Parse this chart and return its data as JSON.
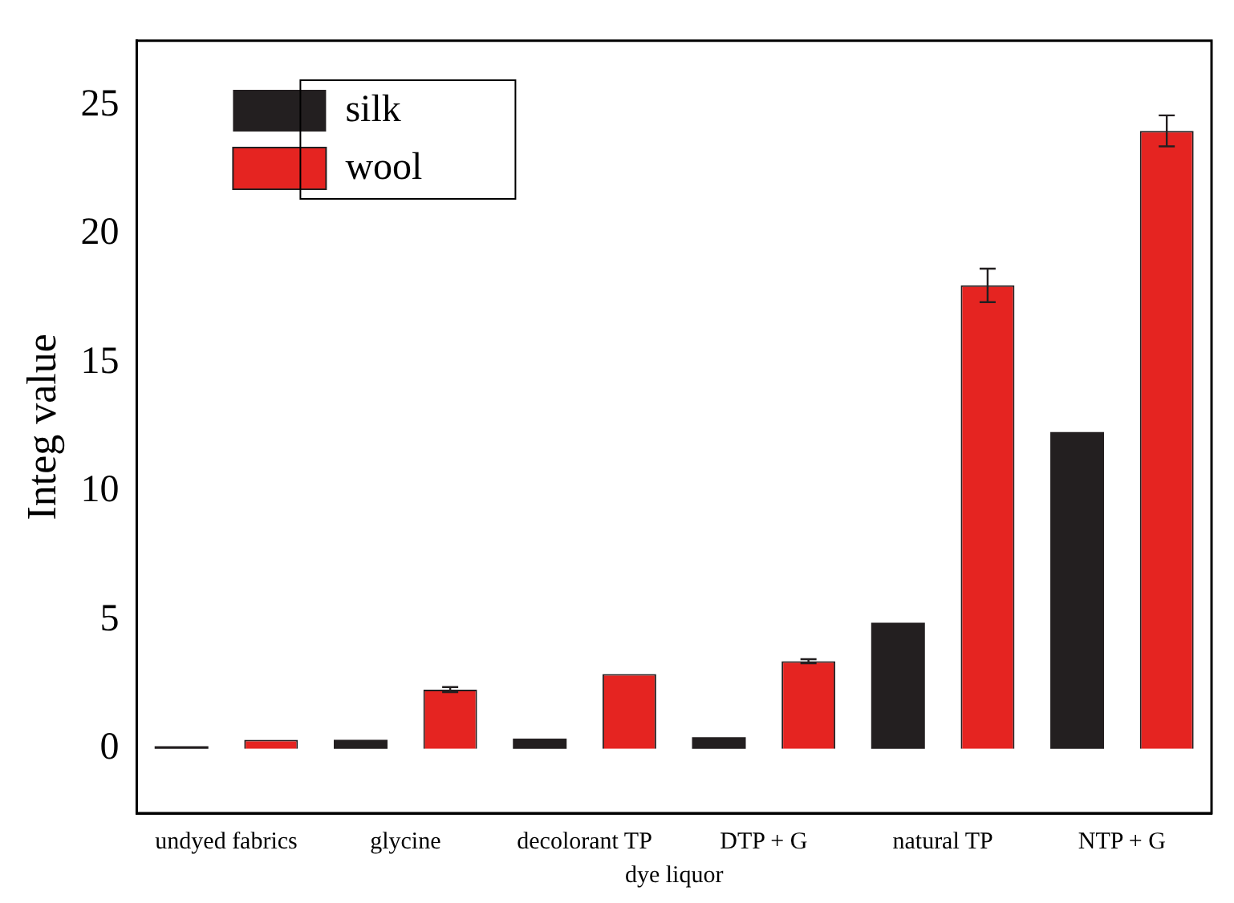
{
  "chart_data": {
    "type": "bar",
    "xlabel": "dye liquor",
    "ylabel": "Integ value",
    "categories": [
      "undyed fabrics",
      "glycine",
      "decolorant TP",
      "DTP + G",
      "natural TP",
      "NTP + G"
    ],
    "series": [
      {
        "name": "silk",
        "color": "#231f20",
        "values": [
          0.1,
          0.35,
          0.4,
          0.45,
          4.9,
          12.3
        ]
      },
      {
        "name": "wool",
        "color": "#e52421",
        "values": [
          0.35,
          2.3,
          2.9,
          3.4,
          18.0,
          24.0
        ],
        "errors": [
          null,
          0.1,
          null,
          0.08,
          0.65,
          0.6
        ]
      }
    ],
    "ylim": [
      -2.5,
      27.5
    ],
    "yticks": [
      0,
      5,
      10,
      15,
      20,
      25
    ],
    "grid": false,
    "legend": "top left"
  }
}
